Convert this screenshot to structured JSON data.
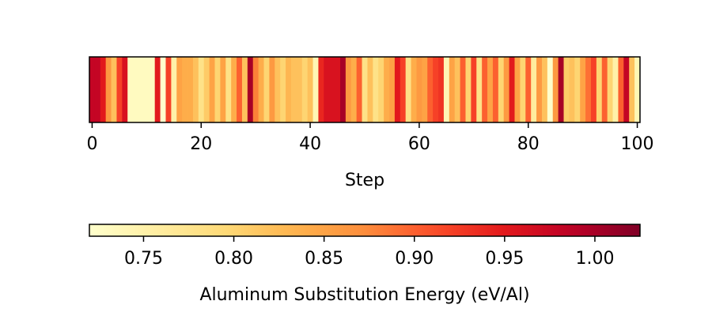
{
  "chart_data": {
    "type": "heatmap",
    "title": "",
    "xlabel": "Step",
    "xlim": [
      0,
      101
    ],
    "xticks": [
      0,
      20,
      40,
      60,
      80,
      100
    ],
    "colormap": "YlOrRd",
    "colorbar": {
      "label": "Aluminum Substitution Energy (eV/Al)",
      "range": [
        0.72,
        1.025
      ],
      "ticks": [
        0.75,
        0.8,
        0.85,
        0.9,
        0.95,
        1.0
      ],
      "tick_labels": [
        "0.75",
        "0.80",
        "0.85",
        "0.90",
        "0.95",
        "1.00"
      ],
      "orientation": "horizontal"
    },
    "values": [
      0.98,
      0.98,
      0.95,
      0.86,
      0.82,
      0.92,
      0.96,
      0.73,
      0.73,
      0.73,
      0.73,
      0.73,
      0.95,
      0.72,
      0.92,
      0.75,
      0.85,
      0.84,
      0.84,
      0.82,
      0.78,
      0.81,
      0.85,
      0.8,
      0.85,
      0.78,
      0.84,
      0.9,
      0.82,
      1.0,
      0.88,
      0.84,
      0.8,
      0.86,
      0.82,
      0.8,
      0.83,
      0.82,
      0.82,
      0.8,
      0.82,
      0.74,
      0.94,
      0.96,
      0.96,
      0.96,
      1.0,
      0.86,
      0.84,
      0.9,
      0.78,
      0.82,
      0.78,
      0.8,
      0.84,
      0.85,
      0.95,
      0.92,
      0.78,
      0.84,
      0.86,
      0.85,
      0.9,
      0.92,
      0.93,
      0.74,
      0.85,
      0.82,
      0.9,
      0.8,
      0.92,
      0.78,
      0.9,
      0.85,
      0.9,
      0.8,
      0.86,
      0.95,
      0.85,
      0.8,
      0.9,
      0.76,
      0.86,
      0.82,
      0.72,
      0.86,
      1.0,
      0.81,
      0.82,
      0.8,
      0.85,
      0.89,
      0.92,
      0.8,
      0.9,
      0.8,
      0.75,
      0.9,
      0.98,
      0.82,
      0.74
    ]
  }
}
